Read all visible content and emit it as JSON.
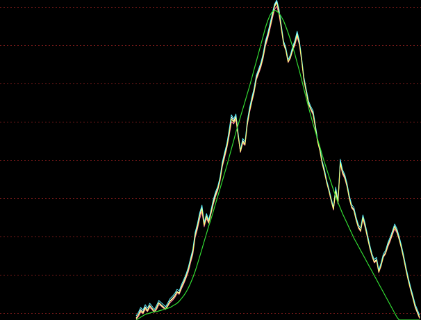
{
  "chart_data": {
    "type": "line",
    "background": "#000000",
    "gridline_color": "#7a1a1a",
    "grid": true,
    "axes_visible": false,
    "x_count": 126,
    "y_range": [
      0,
      460
    ],
    "gridline_levels": [
      10,
      65,
      120,
      175,
      230,
      285,
      340,
      395,
      450
    ],
    "series": [
      {
        "color": "#ffffff",
        "values": [
          3,
          8,
          15,
          11,
          19,
          14,
          21,
          17,
          12,
          18,
          25,
          22,
          19,
          16,
          22,
          28,
          31,
          35,
          41,
          39,
          48,
          55,
          63,
          73,
          86,
          99,
          123,
          135,
          151,
          162,
          137,
          150,
          141,
          155,
          170,
          181,
          189,
          203,
          224,
          238,
          251,
          270,
          292,
          286,
          293,
          265,
          241,
          258,
          253,
          283,
          302,
          317,
          330,
          349,
          358,
          367,
          380,
          398,
          409,
          423,
          437,
          452,
          458,
          444,
          421,
          398,
          389,
          371,
          378,
          390,
          399,
          412,
          398,
          373,
          346,
          329,
          312,
          304,
          298,
          278,
          257,
          245,
          226,
          214,
          198,
          186,
          172,
          159,
          188,
          169,
          228,
          213,
          206,
          193,
          176,
          163,
          159,
          145,
          134,
          129,
          148,
          135,
          120,
          105,
          92,
          84,
          87,
          69,
          79,
          92,
          97,
          108,
          116,
          125,
          135,
          128,
          117,
          104,
          89,
          73,
          58,
          45,
          33,
          20,
          12,
          4
        ]
      },
      {
        "color": "#ff6fa8",
        "values": [
          1,
          5,
          11,
          9,
          15,
          12,
          18,
          15,
          11,
          15,
          22,
          20,
          17,
          15,
          20,
          25,
          28,
          32,
          38,
          37,
          45,
          52,
          60,
          69,
          82,
          94,
          118,
          130,
          145,
          156,
          134,
          146,
          139,
          152,
          166,
          177,
          186,
          200,
          220,
          233,
          247,
          264,
          285,
          282,
          288,
          263,
          241,
          254,
          251,
          279,
          298,
          313,
          326,
          345,
          354,
          363,
          376,
          393,
          404,
          418,
          432,
          446,
          451,
          439,
          418,
          396,
          387,
          370,
          376,
          387,
          395,
          407,
          395,
          371,
          344,
          327,
          310,
          302,
          295,
          276,
          256,
          243,
          225,
          212,
          197,
          185,
          171,
          158,
          184,
          167,
          224,
          210,
          203,
          191,
          174,
          161,
          157,
          143,
          132,
          127,
          145,
          132,
          118,
          103,
          91,
          82,
          85,
          68,
          77,
          90,
          95,
          105,
          113,
          122,
          131,
          125,
          115,
          102,
          87,
          71,
          56,
          43,
          31,
          18,
          10,
          2
        ]
      },
      {
        "color": "#5ff5ff",
        "values": [
          6,
          11,
          18,
          14,
          22,
          17,
          24,
          20,
          15,
          21,
          28,
          25,
          22,
          19,
          25,
          31,
          34,
          38,
          44,
          42,
          51,
          58,
          66,
          76,
          89,
          102,
          126,
          138,
          154,
          165,
          140,
          153,
          144,
          158,
          173,
          184,
          192,
          206,
          227,
          241,
          254,
          273,
          295,
          289,
          296,
          268,
          244,
          261,
          256,
          286,
          305,
          320,
          333,
          352,
          361,
          370,
          383,
          401,
          412,
          426,
          440,
          454,
          460,
          447,
          424,
          401,
          392,
          374,
          381,
          393,
          402,
          415,
          401,
          376,
          349,
          332,
          315,
          307,
          301,
          281,
          260,
          248,
          229,
          217,
          201,
          189,
          175,
          162,
          191,
          172,
          231,
          216,
          209,
          196,
          179,
          166,
          162,
          148,
          137,
          132,
          151,
          138,
          123,
          108,
          95,
          87,
          90,
          72,
          82,
          95,
          100,
          111,
          119,
          128,
          138,
          131,
          120,
          107,
          92,
          76,
          61,
          48,
          36,
          23,
          15,
          7
        ]
      },
      {
        "color": "#ffff66",
        "values": [
          2,
          7,
          13,
          10,
          17,
          13,
          20,
          16,
          12,
          17,
          24,
          21,
          18,
          16,
          21,
          27,
          30,
          34,
          40,
          38,
          47,
          54,
          62,
          72,
          85,
          97,
          121,
          133,
          149,
          160,
          136,
          149,
          140,
          154,
          168,
          179,
          188,
          202,
          222,
          236,
          249,
          267,
          289,
          284,
          291,
          264,
          242,
          256,
          252,
          281,
          300,
          315,
          328,
          347,
          356,
          365,
          378,
          396,
          407,
          421,
          435,
          450,
          456,
          442,
          420,
          397,
          388,
          371,
          377,
          388,
          397,
          410,
          397,
          372,
          345,
          328,
          311,
          303,
          297,
          277,
          257,
          244,
          226,
          213,
          198,
          186,
          172,
          159,
          186,
          168,
          226,
          212,
          205,
          192,
          175,
          162,
          158,
          144,
          133,
          128,
          147,
          134,
          119,
          104,
          92,
          83,
          86,
          69,
          78,
          91,
          96,
          107,
          115,
          124,
          134,
          127,
          116,
          103,
          88,
          72,
          57,
          44,
          32,
          19,
          11,
          3
        ]
      },
      {
        "color": "#33dd33",
        "values": [
          0,
          2,
          4,
          6,
          8,
          9,
          10,
          11,
          12,
          12,
          13,
          14,
          15,
          16,
          17,
          18,
          20,
          22,
          24,
          27,
          31,
          35,
          40,
          46,
          53,
          61,
          70,
          80,
          91,
          102,
          113,
          124,
          135,
          145,
          156,
          167,
          178,
          189,
          200,
          211,
          222,
          234,
          246,
          258,
          270,
          281,
          292,
          303,
          314,
          325,
          336,
          348,
          360,
          372,
          384,
          396,
          408,
          420,
          430,
          438,
          443,
          445,
          444,
          441,
          436,
          430,
          422,
          413,
          403,
          393,
          382,
          370,
          358,
          345,
          332,
          319,
          306,
          294,
          282,
          271,
          260,
          249,
          238,
          227,
          217,
          207,
          197,
          187,
          178,
          169,
          161,
          153,
          146,
          139,
          132,
          125,
          118,
          112,
          106,
          100,
          94,
          88,
          82,
          76,
          70,
          64,
          58,
          52,
          46,
          40,
          34,
          28,
          22,
          16,
          10,
          4,
          0,
          0,
          0,
          0,
          0,
          0,
          0,
          0,
          0,
          0
        ]
      }
    ]
  }
}
